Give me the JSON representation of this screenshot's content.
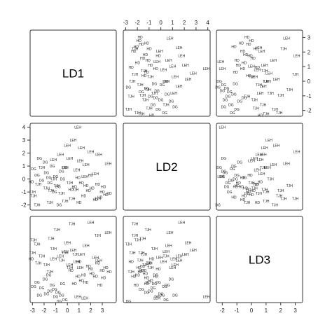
{
  "chart_data": {
    "type": "scatter-matrix",
    "variables": [
      "LD1",
      "LD2",
      "LD3"
    ],
    "axis_limits": {
      "LD1": [
        -3.2,
        4.2
      ],
      "LD2": [
        -2.4,
        4.3
      ],
      "LD3": [
        -2.4,
        3.5
      ]
    },
    "ticks": {
      "LD1": [
        -3,
        -2,
        -1,
        0,
        1,
        2,
        3,
        4
      ],
      "LD2": [
        -2,
        -1,
        0,
        1,
        2,
        3,
        4
      ],
      "LD3": [
        -2,
        -1,
        0,
        1,
        2,
        3
      ]
    },
    "ticks_shown": {
      "LD1_bottom": [
        -3,
        -2,
        -1,
        0,
        1,
        2,
        3
      ],
      "LD1_top": [
        -3,
        -2,
        -1,
        0,
        1,
        2,
        3,
        4
      ],
      "LD2_left": [
        -2,
        -1,
        0,
        1,
        2,
        3,
        4
      ],
      "LD3_right": [
        -2,
        -1,
        0,
        1,
        2,
        3
      ],
      "LD3_bottom": [
        -2,
        -1,
        0,
        1,
        2,
        3
      ]
    },
    "groups": [
      "DG",
      "HD",
      "LEH",
      "TJH"
    ],
    "points": [
      {
        "g": "HD",
        "LD1": 3.0,
        "LD2": -1.0,
        "LD3": -0.2
      },
      {
        "g": "HD",
        "LD1": 3.3,
        "LD2": -1.2,
        "LD3": 0.0
      },
      {
        "g": "HD",
        "LD1": 2.1,
        "LD2": -0.7,
        "LD3": -0.4
      },
      {
        "g": "HD",
        "LD1": 2.4,
        "LD2": -1.6,
        "LD3": -0.6
      },
      {
        "g": "HD",
        "LD1": 1.6,
        "LD2": -0.5,
        "LD3": -1.0
      },
      {
        "g": "HD",
        "LD1": 3.6,
        "LD2": -1.1,
        "LD3": -0.3
      },
      {
        "g": "HD",
        "LD1": 2.8,
        "LD2": -1.4,
        "LD3": -1.2
      },
      {
        "g": "HD",
        "LD1": 1.2,
        "LD2": -0.3,
        "LD3": -0.9
      },
      {
        "g": "HD",
        "LD1": 0.9,
        "LD2": 0.1,
        "LD3": -0.6
      },
      {
        "g": "HD",
        "LD1": 2.0,
        "LD2": 0.3,
        "LD3": -0.1
      },
      {
        "g": "HD",
        "LD1": 1.8,
        "LD2": -0.9,
        "LD3": 0.1
      },
      {
        "g": "HD",
        "LD1": 0.6,
        "LD2": -0.6,
        "LD3": -1.1
      },
      {
        "g": "HD",
        "LD1": 2.6,
        "LD2": -0.4,
        "LD3": 0.3
      },
      {
        "g": "HD",
        "LD1": 1.4,
        "LD2": -1.3,
        "LD3": -0.5
      },
      {
        "g": "HD",
        "LD1": 0.3,
        "LD2": -0.8,
        "LD3": -0.2
      },
      {
        "g": "HD",
        "LD1": 3.1,
        "LD2": -0.6,
        "LD3": -0.7
      },
      {
        "g": "HD",
        "LD1": -3.1,
        "LD2": -0.2,
        "LD3": 0.6
      },
      {
        "g": "HD",
        "LD1": 1.0,
        "LD2": -1.8,
        "LD3": 0.4
      },
      {
        "g": "DG",
        "LD1": -1.5,
        "LD2": -0.3,
        "LD3": -1.6
      },
      {
        "g": "DG",
        "LD1": -1.8,
        "LD2": 0.5,
        "LD3": -1.8
      },
      {
        "g": "DG",
        "LD1": -1.0,
        "LD2": 0.2,
        "LD3": -2.0
      },
      {
        "g": "DG",
        "LD1": -2.2,
        "LD2": -0.1,
        "LD3": -1.4
      },
      {
        "g": "DG",
        "LD1": -0.5,
        "LD2": 0.6,
        "LD3": -1.9
      },
      {
        "g": "DG",
        "LD1": -1.3,
        "LD2": 1.0,
        "LD3": -1.2
      },
      {
        "g": "DG",
        "LD1": -2.6,
        "LD2": 0.3,
        "LD3": -1.0
      },
      {
        "g": "DG",
        "LD1": -0.8,
        "LD2": -0.6,
        "LD3": -1.7
      },
      {
        "g": "DG",
        "LD1": -1.9,
        "LD2": 1.3,
        "LD3": -0.8
      },
      {
        "g": "DG",
        "LD1": -0.2,
        "LD2": 0.9,
        "LD3": -2.2
      },
      {
        "g": "DG",
        "LD1": -2.9,
        "LD2": 0.8,
        "LD3": -1.3
      },
      {
        "g": "DG",
        "LD1": -1.1,
        "LD2": -1.0,
        "LD3": -1.5
      },
      {
        "g": "DG",
        "LD1": -0.4,
        "LD2": 0.0,
        "LD3": -1.1
      },
      {
        "g": "DG",
        "LD1": -2.4,
        "LD2": 1.6,
        "LD3": -1.9
      },
      {
        "g": "DG",
        "LD1": -1.6,
        "LD2": 0.1,
        "LD3": -0.5
      },
      {
        "g": "DG",
        "LD1": -0.7,
        "LD2": -2.0,
        "LD3": -2.3
      },
      {
        "g": "LEH",
        "LD1": 0.9,
        "LD2": 4.0,
        "LD3": -2.0
      },
      {
        "g": "LEH",
        "LD1": 0.5,
        "LD2": 3.0,
        "LD3": 1.2
      },
      {
        "g": "LEH",
        "LD1": 1.2,
        "LD2": 2.4,
        "LD3": 0.9
      },
      {
        "g": "LEH",
        "LD1": 2.7,
        "LD2": 1.9,
        "LD3": 0.5
      },
      {
        "g": "LEH",
        "LD1": 0.2,
        "LD2": 1.6,
        "LD3": 0.2
      },
      {
        "g": "LEH",
        "LD1": 1.6,
        "LD2": 1.1,
        "LD3": 1.5
      },
      {
        "g": "LEH",
        "LD1": 3.5,
        "LD2": 1.2,
        "LD3": 2.4
      },
      {
        "g": "LEH",
        "LD1": -0.6,
        "LD2": 1.9,
        "LD3": 0.8
      },
      {
        "g": "LEH",
        "LD1": 0.8,
        "LD2": 0.7,
        "LD3": 0.4
      },
      {
        "g": "LEH",
        "LD1": 2.0,
        "LD2": 2.1,
        "LD3": 3.1
      },
      {
        "g": "LEH",
        "LD1": -0.2,
        "LD2": 0.9,
        "LD3": 1.1
      },
      {
        "g": "LEH",
        "LD1": 1.1,
        "LD2": 1.4,
        "LD3": 0.0
      },
      {
        "g": "LEH",
        "LD1": 2.4,
        "LD2": 0.4,
        "LD3": 0.7
      },
      {
        "g": "LEH",
        "LD1": 0.0,
        "LD2": 2.6,
        "LD3": 1.7
      },
      {
        "g": "LEH",
        "LD1": 1.5,
        "LD2": 0.2,
        "LD3": -2.1
      },
      {
        "g": "LEH",
        "LD1": -1.2,
        "LD2": 1.5,
        "LD3": 0.6
      },
      {
        "g": "TJH",
        "LD1": -2.9,
        "LD2": -1.3,
        "LD3": 1.9
      },
      {
        "g": "TJH",
        "LD1": -2.6,
        "LD2": -2.0,
        "LD3": 1.6
      },
      {
        "g": "TJH",
        "LD1": -1.4,
        "LD2": -0.9,
        "LD3": 2.0
      },
      {
        "g": "TJH",
        "LD1": -0.9,
        "LD2": -0.5,
        "LD3": 2.6
      },
      {
        "g": "TJH",
        "LD1": 0.4,
        "LD2": -1.5,
        "LD3": 3.0
      },
      {
        "g": "TJH",
        "LD1": -1.8,
        "LD2": -0.7,
        "LD3": 0.2
      },
      {
        "g": "TJH",
        "LD1": -2.2,
        "LD2": 0.9,
        "LD3": 0.8
      },
      {
        "g": "TJH",
        "LD1": -0.5,
        "LD2": -1.1,
        "LD3": 0.5
      },
      {
        "g": "TJH",
        "LD1": -1.2,
        "LD2": 0.0,
        "LD3": 1.3
      },
      {
        "g": "TJH",
        "LD1": 0.2,
        "LD2": -0.3,
        "LD3": 0.0
      },
      {
        "g": "TJH",
        "LD1": -0.2,
        "LD2": -1.7,
        "LD3": 1.0
      },
      {
        "g": "TJH",
        "LD1": 2.6,
        "LD2": -1.5,
        "LD3": 2.2
      },
      {
        "g": "TJH",
        "LD1": -2.5,
        "LD2": -0.4,
        "LD3": 0.3
      },
      {
        "g": "TJH",
        "LD1": -1.5,
        "LD2": -1.8,
        "LD3": -0.3
      },
      {
        "g": "TJH",
        "LD1": 0.7,
        "LD2": -0.8,
        "LD3": 0.9
      },
      {
        "g": "TJH",
        "LD1": -3.0,
        "LD2": -1.0,
        "LD3": 1.0
      }
    ],
    "legend": "none",
    "grid": false
  }
}
